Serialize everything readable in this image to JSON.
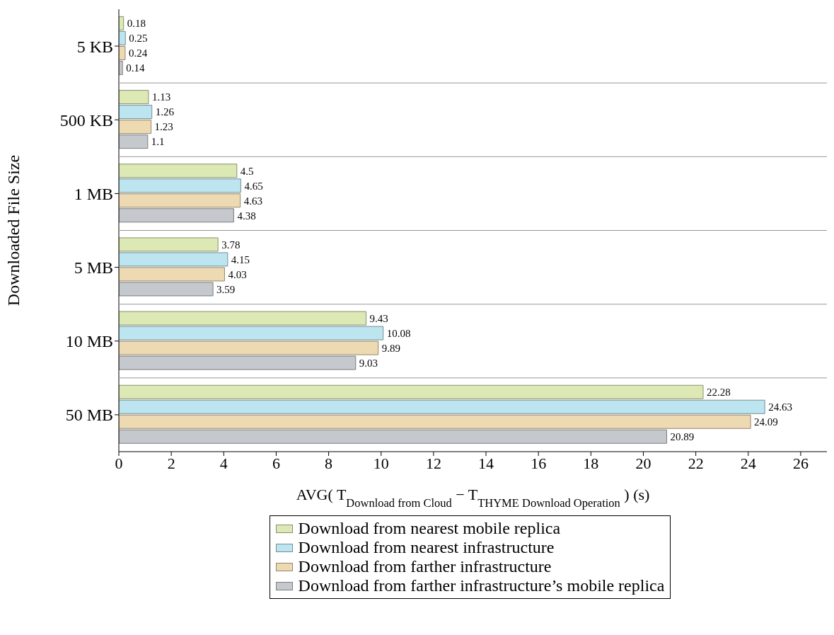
{
  "chart_data": {
    "type": "bar",
    "orientation": "horizontal",
    "xlabel": "AVG( T$_{Download from Cloud}$ − T$_{THYME Download Operation}$ ) (s)",
    "ylabel": "Downloaded File Size",
    "categories": [
      "5 KB",
      "500 KB",
      "1 MB",
      "5 MB",
      "10 MB",
      "50 MB"
    ],
    "series": [
      {
        "name": "Download from nearest mobile replica",
        "color": "#dce9b4",
        "values": [
          0.18,
          1.13,
          4.5,
          3.78,
          9.43,
          22.28
        ]
      },
      {
        "name": "Download from nearest infrastructure",
        "color": "#bce5f0",
        "values": [
          0.25,
          1.26,
          4.65,
          4.15,
          10.08,
          24.63
        ]
      },
      {
        "name": "Download from farther infrastructure",
        "color": "#eddab2",
        "values": [
          0.24,
          1.23,
          4.63,
          4.03,
          9.89,
          24.09
        ]
      },
      {
        "name": "Download from farther infrastructure’s mobile replica",
        "color": "#c5c9cd",
        "values": [
          0.14,
          1.1,
          4.38,
          3.59,
          9.03,
          20.89
        ]
      }
    ],
    "xlim": [
      0,
      27
    ],
    "xticks": [
      0,
      2,
      4,
      6,
      8,
      10,
      12,
      14,
      16,
      18,
      20,
      22,
      24,
      26
    ],
    "data_labels": true,
    "grid": "y",
    "legend": "bottom"
  }
}
